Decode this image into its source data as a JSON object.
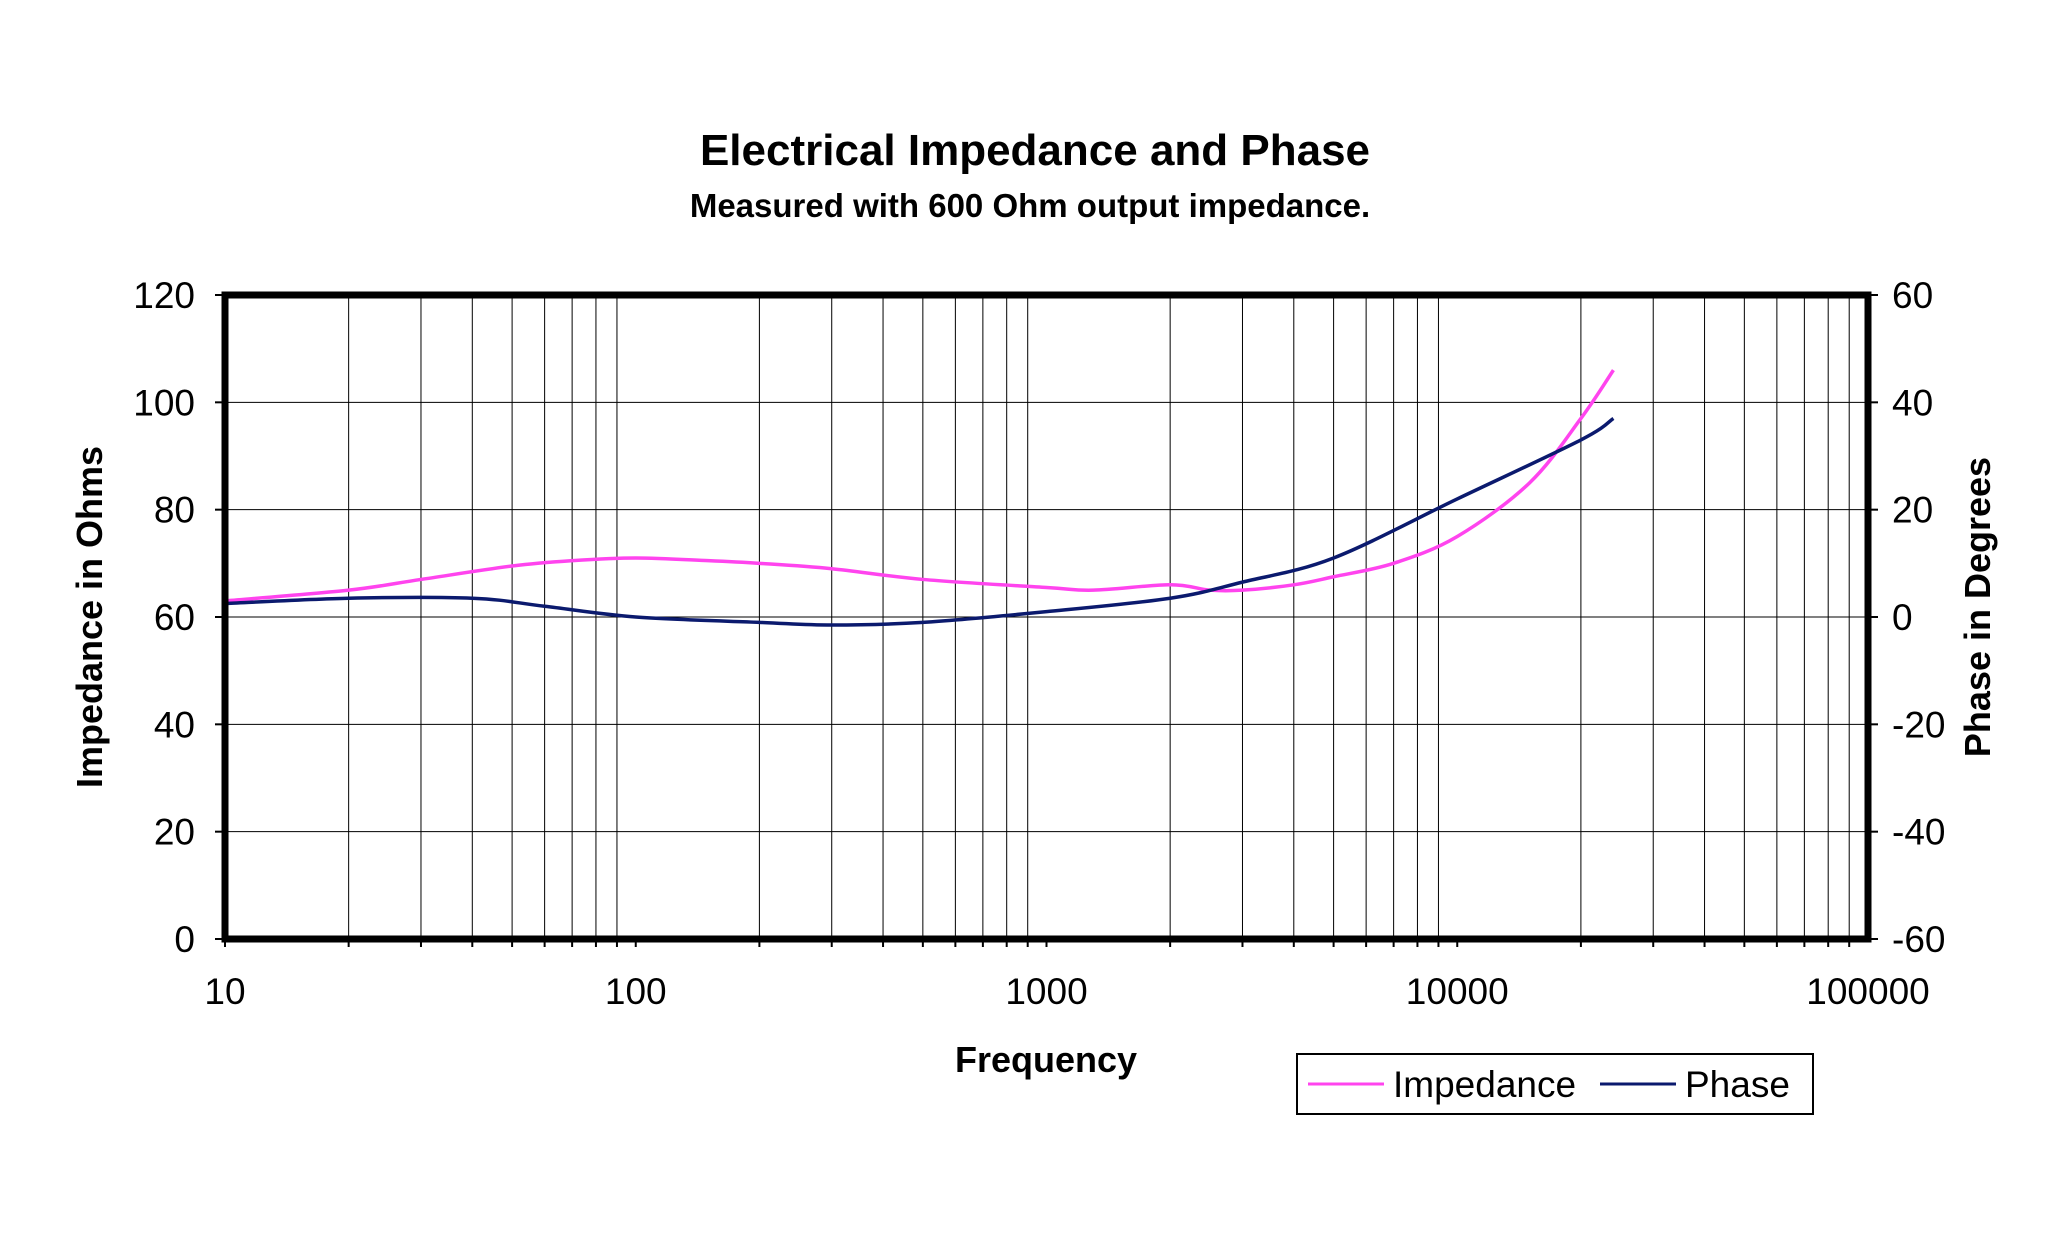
{
  "chart_data": {
    "type": "line",
    "title": "Electrical Impedance and Phase",
    "subtitle": "Measured with 600 Ohm output impedance.",
    "xlabel": "Frequency",
    "ylabel": "Impedance in Ohms",
    "y2label": "Phase in Degrees",
    "x_scale": "log",
    "xlim": [
      10,
      100000
    ],
    "ylim": [
      0,
      120
    ],
    "y2lim": [
      -60,
      60
    ],
    "x_ticks": [
      "10",
      "100",
      "1000",
      "10000",
      "100000"
    ],
    "y_ticks": [
      "0",
      "20",
      "40",
      "60",
      "80",
      "100",
      "120"
    ],
    "y2_ticks": [
      "-60",
      "-40",
      "-20",
      "0",
      "20",
      "40",
      "60"
    ],
    "grid": true,
    "legend_position": "bottom-right",
    "series": [
      {
        "name": "Impedance",
        "axis": "left",
        "color": "#ff44ee",
        "x": [
          10,
          20,
          30,
          50,
          70,
          100,
          150,
          200,
          300,
          500,
          1000,
          1300,
          2000,
          2500,
          3000,
          4000,
          5000,
          7000,
          10000,
          15000,
          20000,
          24000
        ],
        "y": [
          63,
          65,
          67,
          69.5,
          70.5,
          71,
          70.5,
          70,
          69,
          67,
          65.5,
          65,
          66,
          65,
          65,
          66,
          67.5,
          70,
          75,
          85,
          97,
          106
        ]
      },
      {
        "name": "Phase",
        "axis": "right",
        "color": "#0b1a6e",
        "x": [
          10,
          20,
          40,
          60,
          100,
          200,
          300,
          500,
          1000,
          2000,
          3000,
          5000,
          10000,
          20000,
          24000
        ],
        "y": [
          2.5,
          3.5,
          3.5,
          2,
          0,
          -1,
          -1.5,
          -1,
          1,
          3.5,
          6.5,
          11,
          22,
          33,
          37
        ]
      }
    ]
  }
}
